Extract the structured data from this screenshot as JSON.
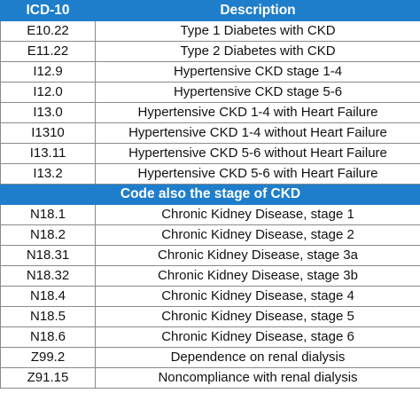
{
  "header": {
    "code_label": "ICD-10",
    "desc_label": "Description"
  },
  "rows_top": [
    {
      "code": "E10.22",
      "desc": "Type 1 Diabetes with CKD"
    },
    {
      "code": "E11.22",
      "desc": "Type 2 Diabetes with CKD"
    },
    {
      "code": "I12.9",
      "desc": "Hypertensive CKD stage 1-4"
    },
    {
      "code": "I12.0",
      "desc": "Hypertensive CKD stage 5-6"
    },
    {
      "code": "I13.0",
      "desc": "Hypertensive CKD 1-4 with Heart Failure"
    },
    {
      "code": "I1310",
      "desc": "Hypertensive CKD 1-4 without Heart Failure"
    },
    {
      "code": "I13.11",
      "desc": "Hypertensive CKD 5-6 without  Heart Failure"
    },
    {
      "code": "I13.2",
      "desc": "Hypertensive CKD 5-6 with Heart Failure"
    }
  ],
  "section": {
    "label": "Code also the stage of CKD"
  },
  "rows_bottom": [
    {
      "code": "N18.1",
      "desc": "Chronic Kidney Disease, stage 1"
    },
    {
      "code": "N18.2",
      "desc": "Chronic Kidney Disease, stage 2"
    },
    {
      "code": "N18.31",
      "desc": "Chronic Kidney Disease, stage 3a"
    },
    {
      "code": "N18.32",
      "desc": "Chronic Kidney Disease, stage 3b"
    },
    {
      "code": "N18.4",
      "desc": "Chronic Kidney Disease, stage 4"
    },
    {
      "code": "N18.5",
      "desc": "Chronic Kidney Disease, stage 5"
    },
    {
      "code": "N18.6",
      "desc": "Chronic Kidney Disease, stage 6"
    },
    {
      "code": "Z99.2",
      "desc": "Dependence on renal dialysis"
    },
    {
      "code": "Z91.15",
      "desc": "Noncompliance with renal dialysis"
    }
  ],
  "colors": {
    "header_bg": "#1f7ecb",
    "header_text": "#ffffff",
    "border": "#8a8a8a"
  }
}
